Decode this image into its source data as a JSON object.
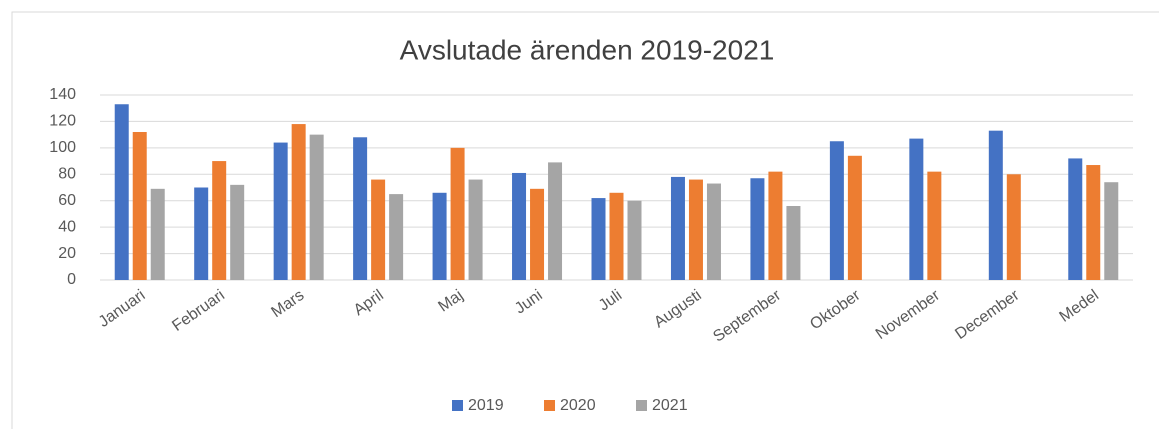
{
  "chart_data": {
    "type": "bar",
    "title": "Avslutade ärenden 2019-2021",
    "categories": [
      "Januari",
      "Februari",
      "Mars",
      "April",
      "Maj",
      "Juni",
      "Juli",
      "Augusti",
      "September",
      "Oktober",
      "November",
      "December",
      "Medel"
    ],
    "series": [
      {
        "name": "2019",
        "color": "#4472c4",
        "values": [
          133,
          70,
          104,
          108,
          66,
          81,
          62,
          78,
          77,
          105,
          107,
          113,
          92
        ]
      },
      {
        "name": "2020",
        "color": "#ed7d31",
        "values": [
          112,
          90,
          118,
          76,
          100,
          69,
          66,
          76,
          82,
          94,
          82,
          80,
          87
        ]
      },
      {
        "name": "2021",
        "color": "#a5a5a5",
        "values": [
          69,
          72,
          110,
          65,
          76,
          89,
          60,
          73,
          56,
          null,
          null,
          null,
          74
        ]
      }
    ],
    "ylim": [
      0,
      140
    ],
    "yticks": [
      0,
      20,
      40,
      60,
      80,
      100,
      120,
      140
    ],
    "grid": true,
    "legend": "bottom"
  }
}
